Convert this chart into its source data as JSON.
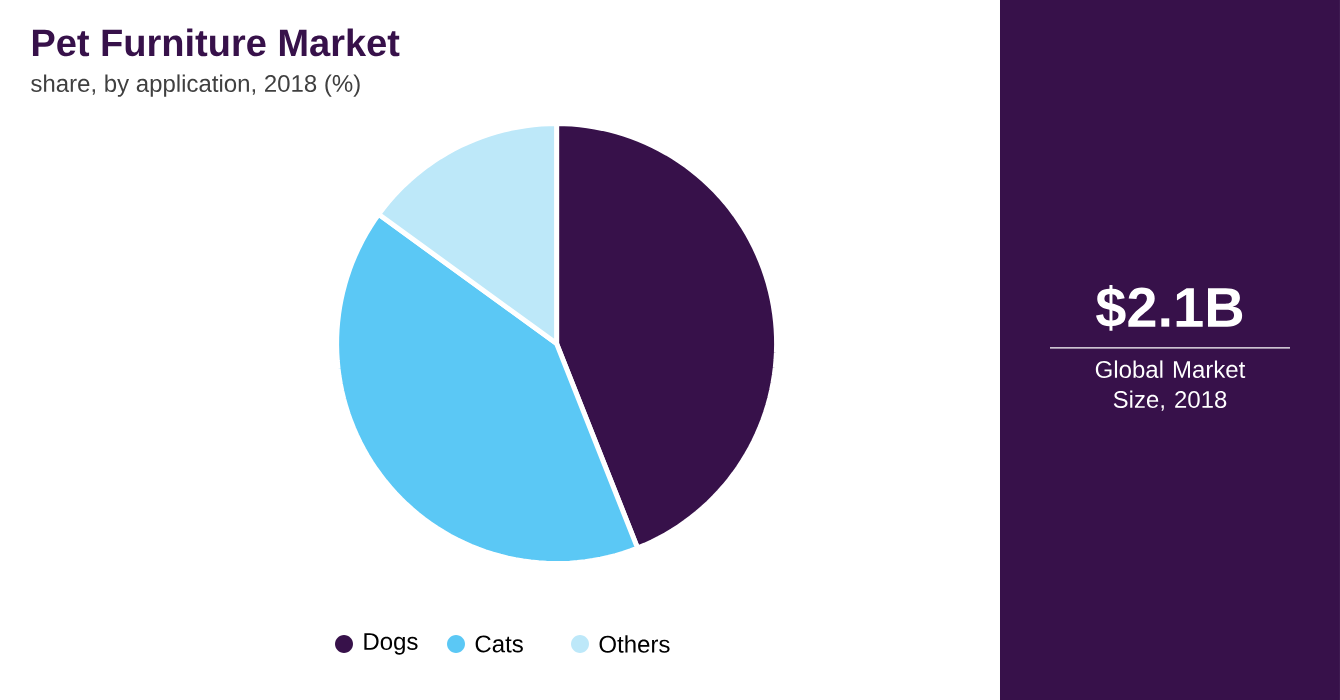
{
  "chart_data": {
    "type": "pie",
    "title": "Pet Furniture Market",
    "subtitle": "share, by application, 2018 (%)",
    "categories": [
      "Dogs",
      "Cats",
      "Others"
    ],
    "values": [
      44,
      41,
      15
    ],
    "colors": [
      "#37114a",
      "#5bc8f5",
      "#bde8f9"
    ],
    "legend": "bottom",
    "annotations": [
      "$2.1B",
      "Global Market Size, 2018"
    ]
  }
}
